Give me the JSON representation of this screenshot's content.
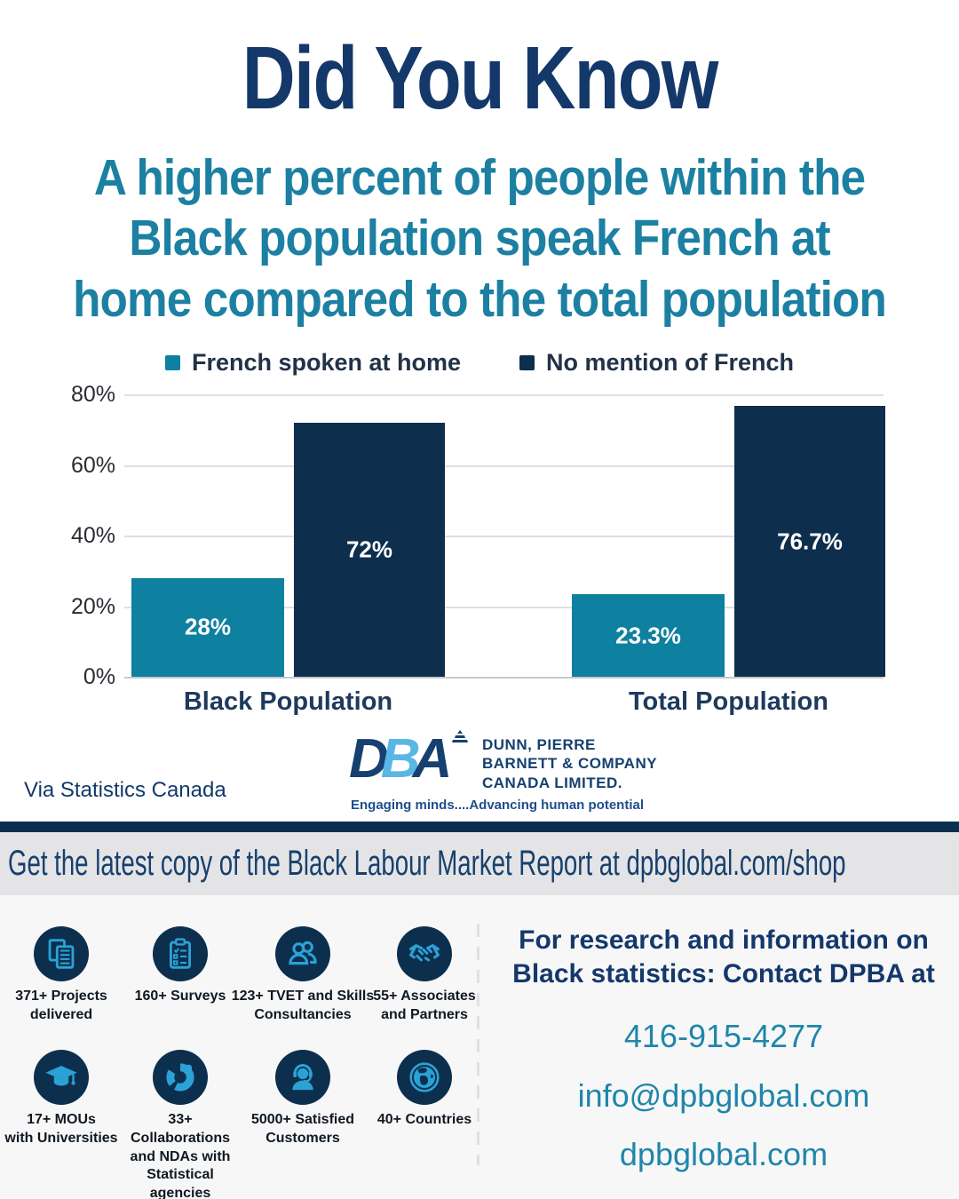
{
  "page": {
    "title": "Did You Know",
    "subtitle": "A higher percent of people within the\nBlack population speak French at\nhome compared to the total population",
    "source": "Via Statistics Canada"
  },
  "chart_data": {
    "type": "bar",
    "categories": [
      "Black Population",
      "Total Population"
    ],
    "series": [
      {
        "name": "French spoken at home",
        "color": "#0E80A0",
        "values": [
          28,
          23.3
        ],
        "value_labels": [
          "28%",
          "23.3%"
        ]
      },
      {
        "name": "No mention of French",
        "color": "#0D2E4D",
        "values": [
          72,
          76.7
        ],
        "value_labels": [
          "72%",
          "76.7%"
        ]
      }
    ],
    "ylim": [
      0,
      80
    ],
    "yticks": [
      0,
      20,
      40,
      60,
      80
    ],
    "ytick_labels": [
      "0%",
      "20%",
      "40%",
      "60%",
      "80%"
    ],
    "grid": true,
    "legend_position": "top",
    "value_label_color": "#FFFFFF"
  },
  "logo": {
    "monogram_letters": [
      {
        "char": "D",
        "color": "#16406F"
      },
      {
        "char": "B",
        "color": "#5AB6E4"
      },
      {
        "char": "A",
        "color": "#16406F"
      }
    ],
    "company": "DUNN, PIERRE\nBARNETT & COMPANY\nCANADA LIMITED.",
    "tagline": "Engaging minds....Advancing human potential"
  },
  "banner": {
    "text": "Get the latest copy of the Black Labour Market Report at dpbglobal.com/shop"
  },
  "stats": {
    "items": [
      {
        "icon": "documents-icon",
        "label": "371+ Projects\ndelivered"
      },
      {
        "icon": "clipboard-icon",
        "label": "160+ Surveys"
      },
      {
        "icon": "people-icon",
        "label": "123+ TVET and Skills\nConsultancies"
      },
      {
        "icon": "handshake-icon",
        "label": "55+ Associates\nand Partners"
      },
      {
        "icon": "graduation-cap-icon",
        "label": "17+ MOUs\nwith Universities"
      },
      {
        "icon": "donut-chart-icon",
        "label": "33+ Collaborations\nand NDAs with\nStatistical agencies"
      },
      {
        "icon": "headset-icon",
        "label": "5000+ Satisfied\nCustomers"
      },
      {
        "icon": "globe-icon",
        "label": "40+ Countries"
      }
    ],
    "icon_glyph_color": "#2BA2D6",
    "icon_circle_color": "#0D2F4E"
  },
  "contact": {
    "heading": "For research and information on\nBlack statistics: Contact DPBA at",
    "phone": "416-915-4277",
    "email": "info@dpbglobal.com",
    "website": "dpbglobal.com"
  },
  "colors": {
    "title_navy": "#14386A",
    "subtitle_teal": "#1C80A2",
    "bar_teal": "#0E80A0",
    "bar_navy": "#0D2E4D",
    "strip_navy": "#0A2F50",
    "banner_bg": "#E4E4E6",
    "bottom_bg": "#F7F7F8"
  }
}
